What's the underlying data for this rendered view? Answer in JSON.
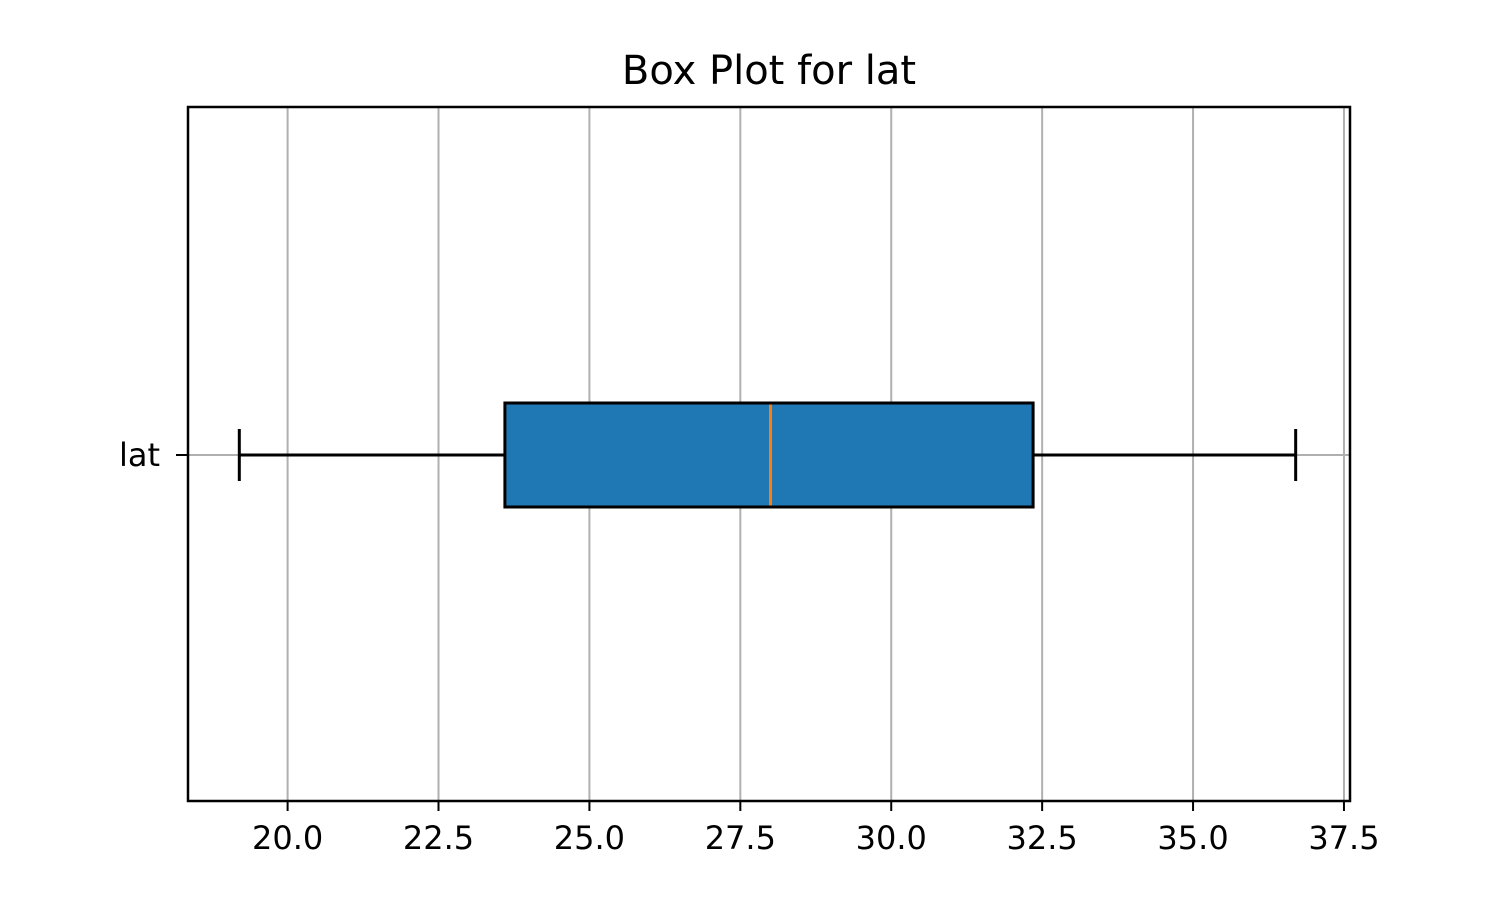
{
  "chart_data": {
    "type": "box",
    "title": "Box Plot for lat",
    "xlabel": "",
    "ylabel": "",
    "orientation": "horizontal",
    "categories": [
      "lat"
    ],
    "series": [
      {
        "name": "lat",
        "whisker_low": 19.2,
        "q1": 23.6,
        "median": 28.0,
        "q3": 32.35,
        "whisker_high": 36.7
      }
    ],
    "xlim": [
      18.35,
      37.6
    ],
    "xticks": [
      20.0,
      22.5,
      25.0,
      27.5,
      30.0,
      32.5,
      35.0,
      37.5
    ],
    "xtick_labels": [
      "20.0",
      "22.5",
      "25.0",
      "27.5",
      "30.0",
      "32.5",
      "35.0",
      "37.5"
    ],
    "grid": true,
    "colors": {
      "box_fill": "#1f77b4",
      "median": "#ff7f0e",
      "grid": "#b0b0b0",
      "line": "#000000"
    }
  }
}
